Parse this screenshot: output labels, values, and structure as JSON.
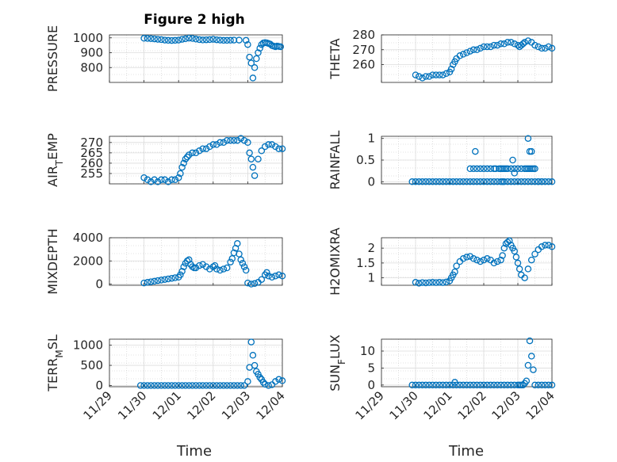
{
  "figure": {
    "title": "Figure 2 high",
    "xlabel": "Time",
    "marker_color": "#0072bd",
    "grid_color": "#c8c8c8",
    "x_ticks": [
      "11/29",
      "11/30",
      "12/01",
      "12/02",
      "12/03",
      "12/04"
    ]
  },
  "chart_data": [
    {
      "type": "scatter",
      "name": "pressure",
      "ylabel": "PRESSURE",
      "ylim": [
        700,
        1020
      ],
      "yticks": [
        800,
        900,
        1000
      ],
      "xlim": [
        0,
        5
      ],
      "x": [
        1.0,
        1.1,
        1.2,
        1.3,
        1.4,
        1.5,
        1.6,
        1.7,
        1.8,
        1.9,
        2.0,
        2.1,
        2.2,
        2.3,
        2.4,
        2.5,
        2.6,
        2.7,
        2.8,
        2.9,
        3.0,
        3.1,
        3.2,
        3.3,
        3.4,
        3.5,
        3.6,
        3.75,
        3.95,
        4.0,
        4.05,
        4.1,
        4.15,
        4.2,
        4.25,
        4.3,
        4.35,
        4.4,
        4.45,
        4.5,
        4.55,
        4.6,
        4.65,
        4.7,
        4.75,
        4.8,
        4.85,
        4.9,
        4.95
      ],
      "y": [
        997,
        996,
        995,
        993,
        990,
        988,
        985,
        983,
        982,
        983,
        985,
        990,
        994,
        998,
        996,
        992,
        988,
        986,
        987,
        988,
        990,
        987,
        985,
        983,
        983,
        984,
        985,
        985,
        983,
        955,
        870,
        830,
        730,
        800,
        860,
        900,
        930,
        955,
        965,
        968,
        966,
        962,
        958,
        948,
        944,
        940,
        945,
        942,
        940
      ]
    },
    {
      "type": "scatter",
      "name": "theta",
      "ylabel": "THETA",
      "ylim": [
        248,
        280
      ],
      "yticks": [
        260,
        270,
        280
      ],
      "xlim": [
        0,
        5
      ],
      "x": [
        1.0,
        1.1,
        1.2,
        1.3,
        1.4,
        1.5,
        1.6,
        1.7,
        1.8,
        1.9,
        2.0,
        2.05,
        2.1,
        2.15,
        2.2,
        2.3,
        2.4,
        2.5,
        2.6,
        2.7,
        2.8,
        2.9,
        3.0,
        3.1,
        3.2,
        3.3,
        3.4,
        3.5,
        3.6,
        3.7,
        3.8,
        3.9,
        4.0,
        4.05,
        4.1,
        4.15,
        4.2,
        4.3,
        4.4,
        4.5,
        4.6,
        4.7,
        4.8,
        4.9,
        5.0
      ],
      "y": [
        253,
        252,
        251,
        252,
        252,
        253,
        253,
        253,
        253,
        254,
        255,
        257,
        260,
        262,
        264,
        266,
        267,
        268,
        269,
        270,
        270,
        271,
        272,
        272,
        272,
        273,
        273,
        274,
        274,
        275,
        275,
        274,
        273,
        272,
        273,
        274,
        275,
        276,
        275,
        273,
        272,
        271,
        271,
        272,
        271
      ]
    },
    {
      "type": "scatter",
      "name": "air_temp",
      "ylabel": "AIR_TEMP",
      "ylim": [
        250,
        273
      ],
      "yticks": [
        255,
        260,
        265,
        270
      ],
      "xlim": [
        0,
        5
      ],
      "x": [
        1.0,
        1.1,
        1.2,
        1.3,
        1.4,
        1.5,
        1.6,
        1.7,
        1.8,
        1.9,
        2.0,
        2.05,
        2.1,
        2.15,
        2.2,
        2.25,
        2.3,
        2.4,
        2.5,
        2.6,
        2.7,
        2.8,
        2.9,
        3.0,
        3.1,
        3.2,
        3.3,
        3.4,
        3.5,
        3.6,
        3.7,
        3.8,
        3.9,
        4.0,
        4.05,
        4.1,
        4.15,
        4.2,
        4.3,
        4.4,
        4.5,
        4.6,
        4.7,
        4.8,
        4.9,
        5.0
      ],
      "y": [
        253,
        252,
        251,
        252,
        251,
        252,
        252,
        251,
        252,
        252,
        253,
        255,
        258,
        260,
        262,
        263,
        264,
        265,
        265,
        266,
        267,
        267,
        268,
        269,
        269,
        270,
        270,
        271,
        271,
        271,
        271,
        272,
        271,
        270,
        265,
        262,
        258,
        254,
        262,
        266,
        268,
        269,
        269,
        268,
        267,
        267
      ]
    },
    {
      "type": "scatter",
      "name": "rainfall",
      "ylabel": "RAINFALL",
      "ylim": [
        -0.05,
        1.05
      ],
      "yticks": [
        0,
        0.5,
        1
      ],
      "xlim": [
        0,
        5
      ],
      "x": [
        0.9,
        1.0,
        1.1,
        1.2,
        1.3,
        1.4,
        1.5,
        1.6,
        1.7,
        1.8,
        1.9,
        2.0,
        2.1,
        2.2,
        2.3,
        2.4,
        2.5,
        2.6,
        2.7,
        2.8,
        2.9,
        3.0,
        3.1,
        3.2,
        3.3,
        3.4,
        3.5,
        3.6,
        3.7,
        3.8,
        3.9,
        4.0,
        4.1,
        4.2,
        4.3,
        4.4,
        4.5,
        4.6,
        4.7,
        4.8,
        4.9,
        5.0,
        2.6,
        2.7,
        2.8,
        2.9,
        3.0,
        3.1,
        3.2,
        3.3,
        3.35,
        3.45,
        3.5,
        3.55,
        3.6,
        3.65,
        3.7,
        3.8,
        3.9,
        4.0,
        4.1,
        4.2,
        4.25,
        4.3,
        4.35,
        4.4,
        4.45,
        4.5,
        2.75,
        3.55,
        3.85,
        3.9,
        4.3,
        4.35,
        4.4,
        4.6,
        4.7
      ],
      "y": [
        0,
        0,
        0,
        0,
        0,
        0,
        0,
        0,
        0,
        0,
        0,
        0,
        0,
        0,
        0,
        0,
        0,
        0,
        0,
        0,
        0,
        0,
        0,
        0,
        0,
        0,
        0,
        0,
        0,
        0,
        0,
        0,
        0,
        0,
        0,
        0,
        0,
        0,
        0,
        0,
        0,
        0,
        0.3,
        0.3,
        0.3,
        0.3,
        0.3,
        0.3,
        0.3,
        0.3,
        0.3,
        0.3,
        0.3,
        0.3,
        0.3,
        0.3,
        0.3,
        0.3,
        0.3,
        0.3,
        0.3,
        0.3,
        0.3,
        0.3,
        0.3,
        0.3,
        0.3,
        0.3,
        0.7,
        0,
        0.5,
        0.2,
        1.0,
        0.7,
        0.7,
        0,
        0
      ]
    },
    {
      "type": "scatter",
      "name": "mixdepth",
      "ylabel": "MIXDEPTH",
      "ylim": [
        -100,
        4000
      ],
      "yticks": [
        0,
        2000,
        4000
      ],
      "xlim": [
        0,
        5
      ],
      "x": [
        1.0,
        1.1,
        1.2,
        1.3,
        1.4,
        1.5,
        1.6,
        1.7,
        1.8,
        1.9,
        2.0,
        2.05,
        2.1,
        2.15,
        2.2,
        2.25,
        2.3,
        2.35,
        2.4,
        2.45,
        2.5,
        2.6,
        2.7,
        2.8,
        2.9,
        3.0,
        3.05,
        3.1,
        3.2,
        3.3,
        3.4,
        3.5,
        3.55,
        3.6,
        3.65,
        3.7,
        3.75,
        3.8,
        3.85,
        3.9,
        3.95,
        4.0,
        4.1,
        4.2,
        4.3,
        4.4,
        4.5,
        4.55,
        4.6,
        4.7,
        4.8,
        4.9,
        5.0
      ],
      "y": [
        100,
        150,
        200,
        250,
        300,
        350,
        400,
        450,
        500,
        550,
        600,
        800,
        1100,
        1500,
        1800,
        2000,
        2100,
        1700,
        1500,
        1400,
        1400,
        1600,
        1700,
        1500,
        1300,
        1500,
        1600,
        1300,
        1200,
        1300,
        1400,
        1900,
        2200,
        2700,
        3100,
        3500,
        2600,
        2100,
        1800,
        1500,
        1200,
        100,
        0,
        50,
        150,
        400,
        800,
        1000,
        700,
        600,
        700,
        800,
        700
      ]
    },
    {
      "type": "scatter",
      "name": "h2omixra",
      "ylabel": "H2OMIXRA",
      "ylim": [
        0.75,
        2.35
      ],
      "yticks": [
        1,
        1.5,
        2
      ],
      "xlim": [
        0,
        5
      ],
      "x": [
        1.0,
        1.1,
        1.2,
        1.3,
        1.4,
        1.5,
        1.6,
        1.7,
        1.8,
        1.9,
        2.0,
        2.05,
        2.1,
        2.15,
        2.2,
        2.3,
        2.4,
        2.5,
        2.6,
        2.7,
        2.8,
        2.9,
        3.0,
        3.1,
        3.2,
        3.3,
        3.4,
        3.5,
        3.55,
        3.6,
        3.65,
        3.7,
        3.75,
        3.8,
        3.85,
        3.9,
        3.95,
        4.0,
        4.05,
        4.1,
        4.2,
        4.3,
        4.4,
        4.5,
        4.6,
        4.7,
        4.8,
        4.9,
        5.0
      ],
      "y": [
        0.85,
        0.82,
        0.84,
        0.83,
        0.84,
        0.85,
        0.84,
        0.85,
        0.84,
        0.86,
        0.9,
        1.0,
        1.1,
        1.2,
        1.4,
        1.55,
        1.65,
        1.7,
        1.72,
        1.65,
        1.6,
        1.55,
        1.6,
        1.65,
        1.6,
        1.5,
        1.55,
        1.6,
        1.75,
        2.0,
        2.15,
        2.2,
        2.25,
        2.1,
        2.0,
        1.9,
        1.7,
        1.5,
        1.3,
        1.1,
        1.0,
        1.3,
        1.6,
        1.8,
        1.95,
        2.05,
        2.1,
        2.1,
        2.05
      ]
    },
    {
      "type": "scatter",
      "name": "terr_msl",
      "ylabel": "TERR_MSL",
      "ylim": [
        -30,
        1150
      ],
      "yticks": [
        0,
        500,
        1000
      ],
      "xlim": [
        0,
        5
      ],
      "x": [
        0.9,
        1.0,
        1.1,
        1.2,
        1.3,
        1.4,
        1.5,
        1.6,
        1.7,
        1.8,
        1.9,
        2.0,
        2.1,
        2.2,
        2.3,
        2.4,
        2.5,
        2.6,
        2.7,
        2.8,
        2.9,
        3.0,
        3.1,
        3.2,
        3.3,
        3.4,
        3.5,
        3.6,
        3.7,
        3.8,
        3.9,
        4.0,
        4.05,
        4.1,
        4.15,
        4.2,
        4.25,
        4.3,
        4.35,
        4.4,
        4.45,
        4.5,
        4.6,
        4.7,
        4.8,
        4.9,
        5.0
      ],
      "y": [
        0,
        0,
        0,
        0,
        0,
        0,
        0,
        0,
        0,
        0,
        0,
        0,
        0,
        0,
        0,
        0,
        0,
        0,
        0,
        0,
        0,
        0,
        0,
        0,
        0,
        0,
        0,
        0,
        0,
        0,
        0,
        100,
        450,
        1080,
        750,
        500,
        350,
        280,
        200,
        150,
        80,
        30,
        0,
        20,
        100,
        150,
        120
      ]
    },
    {
      "type": "scatter",
      "name": "sun_flux",
      "ylabel": "SUN_FLUX",
      "ylim": [
        -0.5,
        13.5
      ],
      "yticks": [
        0,
        5,
        10
      ],
      "xlim": [
        0,
        5
      ],
      "x": [
        0.9,
        1.0,
        1.1,
        1.2,
        1.3,
        1.4,
        1.5,
        1.6,
        1.7,
        1.8,
        1.9,
        2.0,
        2.1,
        2.15,
        2.2,
        2.3,
        2.4,
        2.5,
        2.6,
        2.7,
        2.8,
        2.9,
        3.0,
        3.1,
        3.2,
        3.3,
        3.4,
        3.5,
        3.6,
        3.7,
        3.8,
        3.9,
        4.0,
        4.05,
        4.1,
        4.15,
        4.2,
        4.25,
        4.3,
        4.35,
        4.4,
        4.45,
        4.5,
        4.6,
        4.7,
        4.8,
        4.9,
        5.0
      ],
      "y": [
        0,
        0,
        0,
        0,
        0,
        0,
        0,
        0,
        0,
        0,
        0,
        0,
        0,
        0.8,
        0,
        0,
        0,
        0,
        0,
        0,
        0,
        0,
        0,
        0,
        0,
        0,
        0,
        0,
        0,
        0,
        0,
        0,
        0,
        0,
        0,
        0,
        0.5,
        1.2,
        5.8,
        13,
        8.5,
        4.5,
        0,
        0,
        0,
        0,
        0,
        0
      ]
    }
  ]
}
